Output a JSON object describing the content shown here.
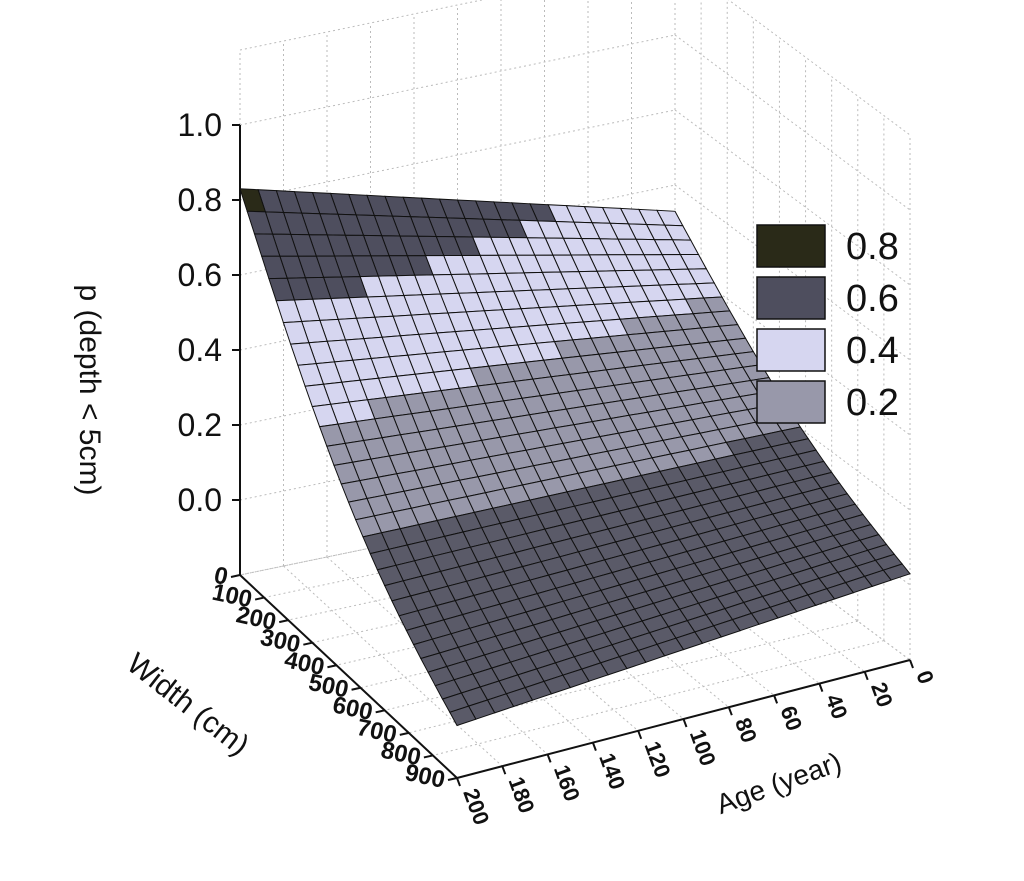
{
  "chart_data": {
    "type": "surface3d",
    "zlabel": "p (depth < 5cm)",
    "xlabel": "Width (cm)",
    "ylabel": "Age (year)",
    "z_ticks": [
      "0.0",
      "0.2",
      "0.4",
      "0.6",
      "0.8",
      "1.0"
    ],
    "width_ticks": [
      "0",
      "100",
      "200",
      "300",
      "400",
      "500",
      "600",
      "700",
      "800",
      "900"
    ],
    "age_ticks": [
      "0",
      "20",
      "40",
      "60",
      "80",
      "100",
      "120",
      "140",
      "160",
      "180",
      "200"
    ],
    "zlim": [
      -0.2,
      1.0
    ],
    "width_range": [
      0,
      900
    ],
    "age_range": [
      0,
      200
    ],
    "grid": true,
    "legend_position": "right",
    "legend": [
      {
        "label": "0.8",
        "color": "#2a2a18"
      },
      {
        "label": "0.6",
        "color": "#4e4e5e"
      },
      {
        "label": "0.4",
        "color": "#d6d6f0"
      },
      {
        "label": "0.2",
        "color": "#9898aa"
      }
    ],
    "bands": [
      {
        "min": 0.8,
        "color": "#2a2a18"
      },
      {
        "min": 0.6,
        "color": "#4e4e5e"
      },
      {
        "min": 0.4,
        "color": "#d6d6f0"
      },
      {
        "min": 0.2,
        "color": "#9898aa"
      },
      {
        "min": -1.0,
        "color": "#5a5a68"
      }
    ],
    "surface_corners": [
      {
        "width": 0,
        "age": 200,
        "p": 0.83
      },
      {
        "width": 0,
        "age": 0,
        "p": 0.53
      },
      {
        "width": 900,
        "age": 0,
        "p": 0.03
      },
      {
        "width": 900,
        "age": 200,
        "p": -0.06
      }
    ]
  }
}
